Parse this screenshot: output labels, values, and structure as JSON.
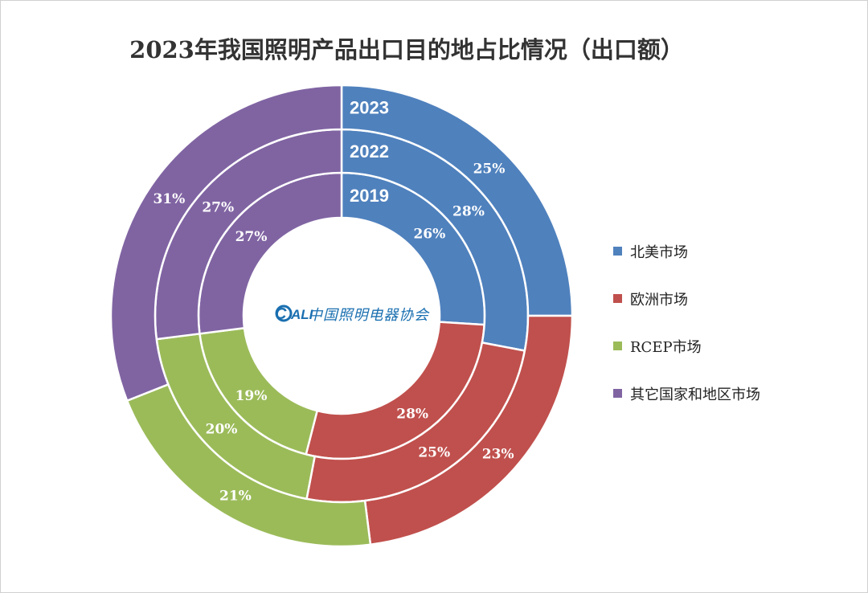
{
  "chart_data": {
    "type": "donut",
    "title": "2023年我国照明产品出口目的地占比情况（出口额）",
    "categories": [
      "北美市场",
      "欧洲市场",
      "RCEP市场",
      "其它国家和地区市场"
    ],
    "colors": [
      "#4f81bd",
      "#c0504d",
      "#9bbb59",
      "#8064a2"
    ],
    "rings": [
      {
        "name": "2019",
        "values": [
          26,
          28,
          19,
          27
        ]
      },
      {
        "name": "2022",
        "values": [
          28,
          25,
          20,
          27
        ]
      },
      {
        "name": "2023",
        "values": [
          25,
          23,
          21,
          31
        ]
      }
    ],
    "value_suffix": "%",
    "legend_position": "right"
  },
  "watermark": {
    "text": "CALI 中国照明电器协会"
  }
}
